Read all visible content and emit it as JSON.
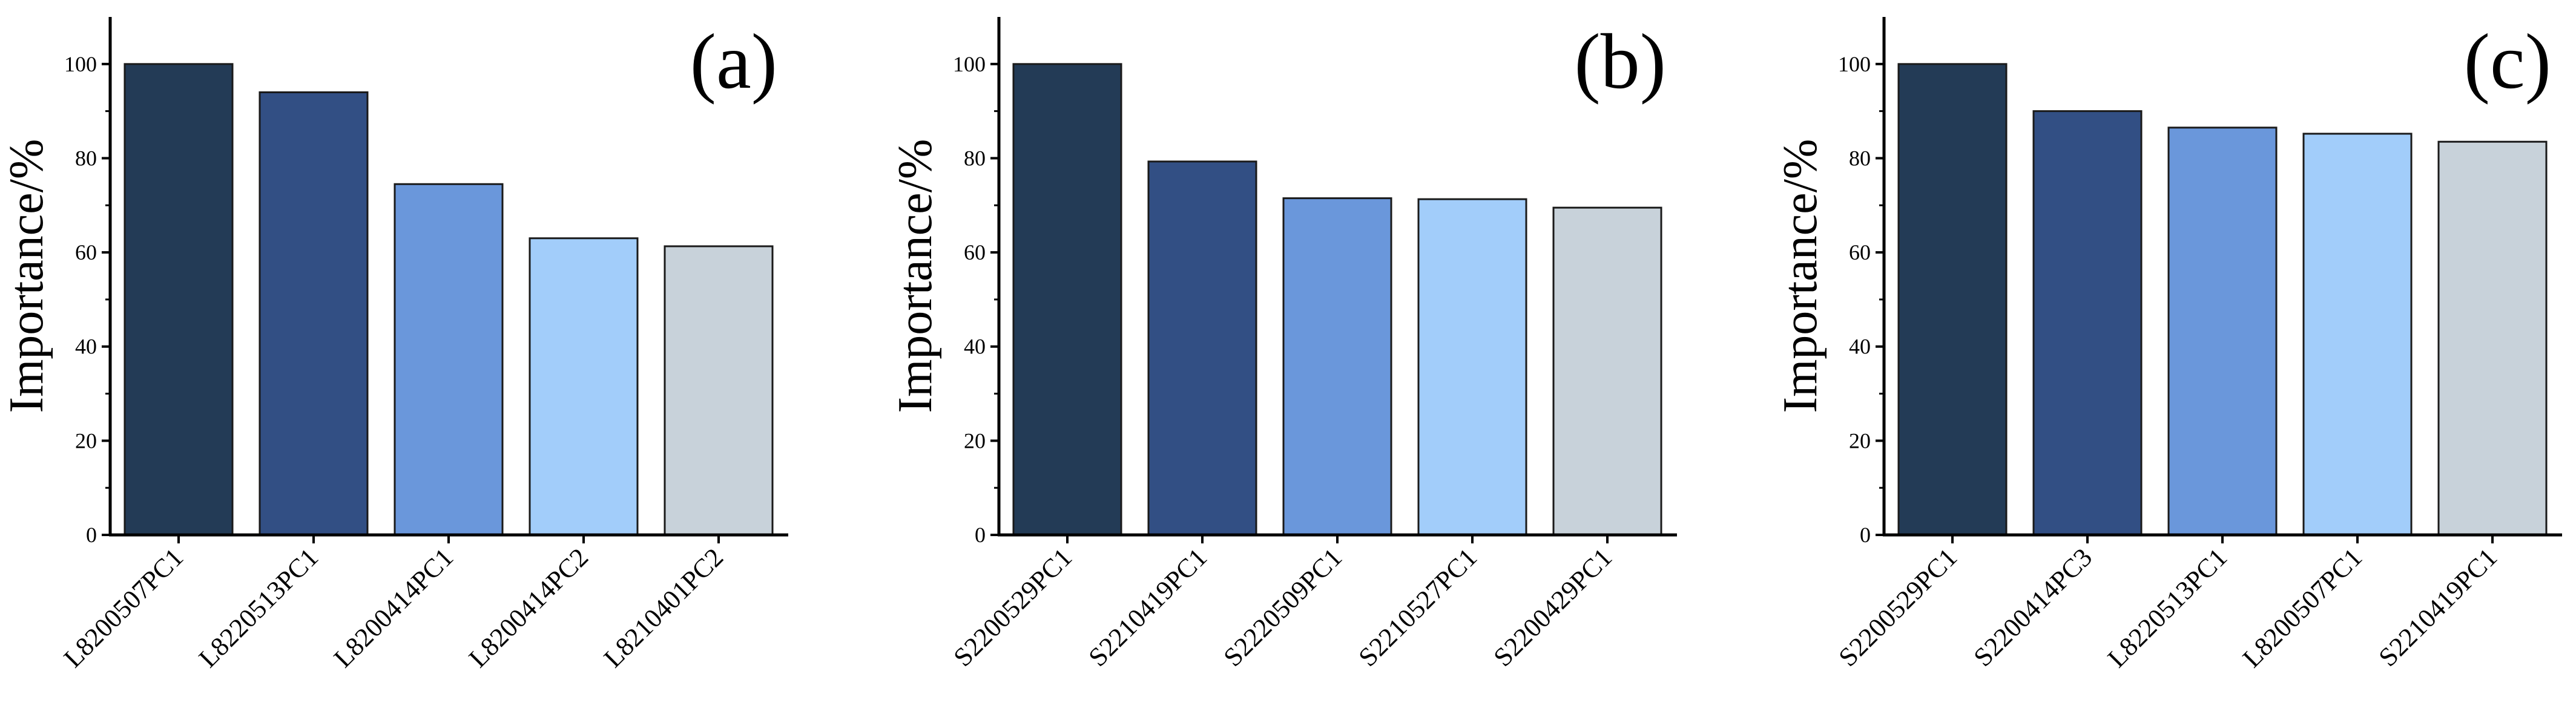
{
  "chart_data": [
    {
      "type": "bar",
      "panel_label": "(a)",
      "ylabel": "Importance/%",
      "ylim": [
        0,
        110
      ],
      "yticks": [
        0,
        20,
        40,
        60,
        80,
        100
      ],
      "categories": [
        "L8200507PC1",
        "L8220513PC1",
        "L8200414PC1",
        "L8200414PC2",
        "L8210401PC2"
      ],
      "values": [
        100,
        94,
        74.5,
        63,
        61.3
      ],
      "colors": [
        "#233b56",
        "#324f84",
        "#6a97db",
        "#a2cdfa",
        "#c8d2da"
      ],
      "grid": false,
      "legend": "none"
    },
    {
      "type": "bar",
      "panel_label": "(b)",
      "ylabel": "Importance/%",
      "ylim": [
        0,
        110
      ],
      "yticks": [
        0,
        20,
        40,
        60,
        80,
        100
      ],
      "categories": [
        "S2200529PC1",
        "S2210419PC1",
        "S2220509PC1",
        "S2210527PC1",
        "S2200429PC1"
      ],
      "values": [
        100,
        79.3,
        71.5,
        71.3,
        69.5
      ],
      "colors": [
        "#233b56",
        "#324f84",
        "#6a97db",
        "#a2cdfa",
        "#c8d2da"
      ],
      "grid": false,
      "legend": "none"
    },
    {
      "type": "bar",
      "panel_label": "(c)",
      "ylabel": "Importance/%",
      "ylim": [
        0,
        110
      ],
      "yticks": [
        0,
        20,
        40,
        60,
        80,
        100
      ],
      "categories": [
        "S2200529PC1",
        "S2200414PC3",
        "L8220513PC1",
        "L8200507PC1",
        "S2210419PC1"
      ],
      "values": [
        100,
        90,
        86.5,
        85.2,
        83.5
      ],
      "colors": [
        "#233b56",
        "#324f84",
        "#6a97db",
        "#a2cdfa",
        "#c8d2da"
      ],
      "grid": false,
      "legend": "none"
    }
  ]
}
